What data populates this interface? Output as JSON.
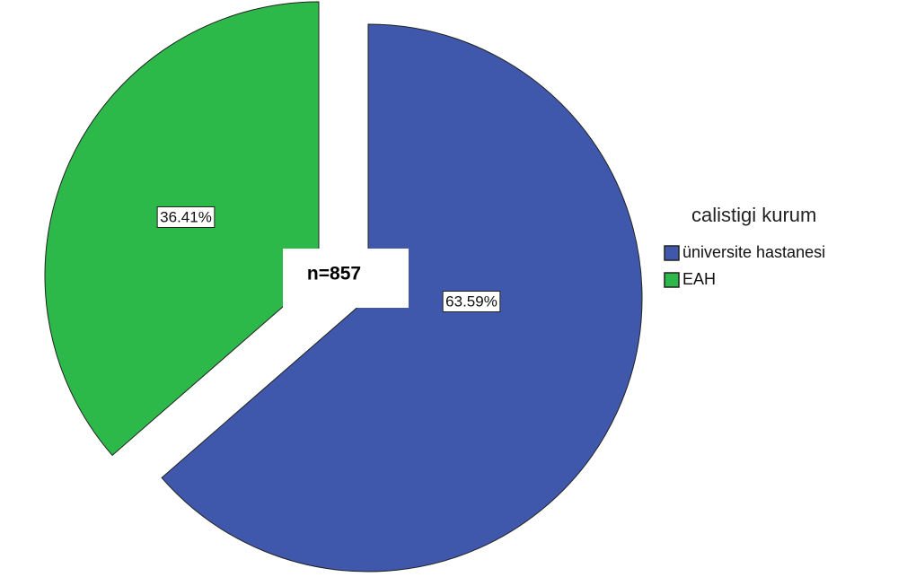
{
  "chart_data": {
    "type": "pie",
    "categories": [
      "üniversite hastanesi",
      "EAH"
    ],
    "values": [
      63.59,
      36.41
    ],
    "value_labels": [
      "63.59%",
      "36.41%"
    ],
    "colors": [
      "#3f58ab",
      "#2db84a"
    ],
    "legend_title": "calistigi kurum",
    "annotation": "n=857"
  }
}
